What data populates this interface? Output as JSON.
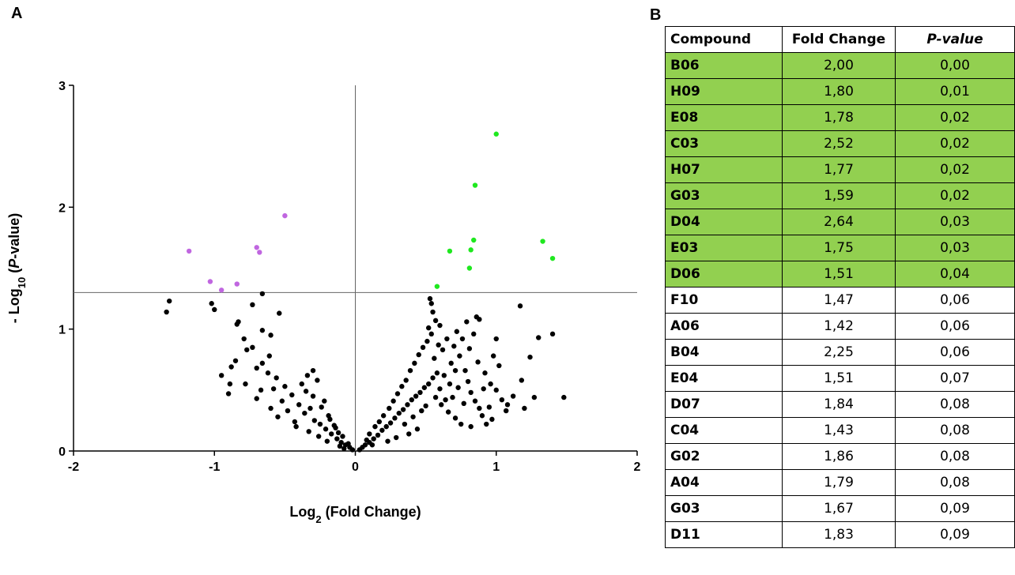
{
  "panel_labels": {
    "a": "A",
    "b": "B"
  },
  "colors": {
    "up": "#1fe81f",
    "down": "#c066e0",
    "ns": "#000000",
    "highlight": "#92d050"
  },
  "chart_data": {
    "type": "scatter",
    "title": "",
    "xlabel": "Log2 (Fold Change)",
    "ylabel": "- Log10 (P-value)",
    "xlim": [
      -2,
      2
    ],
    "ylim": [
      0,
      3
    ],
    "x_ticks": [
      "-2",
      "-1",
      "0",
      "1",
      "2"
    ],
    "y_ticks": [
      "0",
      "1",
      "2",
      "3"
    ],
    "reference_lines": {
      "x": 0,
      "y": 1.3
    },
    "grid": false,
    "series": [
      {
        "color": "#1fe81f",
        "points": [
          [
            1.0,
            2.6
          ],
          [
            0.85,
            2.18
          ],
          [
            0.84,
            1.73
          ],
          [
            0.82,
            1.65
          ],
          [
            1.33,
            1.72
          ],
          [
            1.4,
            1.58
          ],
          [
            0.67,
            1.64
          ],
          [
            0.81,
            1.5
          ],
          [
            0.58,
            1.35
          ]
        ]
      },
      {
        "color": "#c066e0",
        "points": [
          [
            -0.5,
            1.93
          ],
          [
            -1.18,
            1.64
          ],
          [
            -0.7,
            1.67
          ],
          [
            -0.68,
            1.63
          ],
          [
            -1.03,
            1.39
          ],
          [
            -0.84,
            1.37
          ],
          [
            -0.95,
            1.32
          ]
        ]
      },
      {
        "color": "#000000",
        "points": [
          [
            -1.34,
            1.14
          ],
          [
            -1.32,
            1.23
          ],
          [
            -1.02,
            1.21
          ],
          [
            -1.0,
            1.16
          ],
          [
            -0.83,
            1.06
          ],
          [
            -0.84,
            1.04
          ],
          [
            -0.66,
            1.29
          ],
          [
            -0.54,
            1.13
          ],
          [
            -0.6,
            0.95
          ],
          [
            -0.73,
            1.2
          ],
          [
            -0.66,
            0.99
          ],
          [
            -0.73,
            0.85
          ],
          [
            -0.95,
            0.62
          ],
          [
            -0.89,
            0.55
          ],
          [
            -0.9,
            0.47
          ],
          [
            -0.78,
            0.55
          ],
          [
            -0.61,
            0.78
          ],
          [
            -0.66,
            0.72
          ],
          [
            -0.7,
            0.68
          ],
          [
            -0.58,
            0.51
          ],
          [
            -0.5,
            0.53
          ],
          [
            -0.45,
            0.46
          ],
          [
            -0.4,
            0.38
          ],
          [
            -0.36,
            0.31
          ],
          [
            -0.32,
            0.35
          ],
          [
            -0.29,
            0.25
          ],
          [
            -0.25,
            0.22
          ],
          [
            -0.21,
            0.18
          ],
          [
            -0.17,
            0.14
          ],
          [
            -0.13,
            0.1
          ],
          [
            -0.1,
            0.07
          ],
          [
            -0.07,
            0.05
          ],
          [
            -0.04,
            0.03
          ],
          [
            -0.02,
            0.01
          ],
          [
            -0.38,
            0.55
          ],
          [
            -0.34,
            0.62
          ],
          [
            -0.3,
            0.66
          ],
          [
            -0.27,
            0.58
          ],
          [
            -0.22,
            0.41
          ],
          [
            -0.19,
            0.29
          ],
          [
            -0.15,
            0.21
          ],
          [
            -0.12,
            0.15
          ],
          [
            -0.43,
            0.24
          ],
          [
            -0.48,
            0.33
          ],
          [
            -0.52,
            0.41
          ],
          [
            -0.56,
            0.6
          ],
          [
            -0.62,
            0.64
          ],
          [
            -0.67,
            0.5
          ],
          [
            -0.77,
            0.83
          ],
          [
            -0.79,
            0.92
          ],
          [
            -0.85,
            0.74
          ],
          [
            -0.88,
            0.69
          ],
          [
            -0.7,
            0.43
          ],
          [
            -0.6,
            0.35
          ],
          [
            -0.55,
            0.28
          ],
          [
            -0.42,
            0.2
          ],
          [
            -0.33,
            0.16
          ],
          [
            -0.26,
            0.12
          ],
          [
            -0.2,
            0.08
          ],
          [
            -0.11,
            0.04
          ],
          [
            -0.08,
            0.02
          ],
          [
            -0.3,
            0.45
          ],
          [
            -0.35,
            0.49
          ],
          [
            -0.24,
            0.36
          ],
          [
            -0.18,
            0.26
          ],
          [
            -0.14,
            0.19
          ],
          [
            -0.09,
            0.12
          ],
          [
            -0.05,
            0.06
          ],
          [
            0.03,
            0.01
          ],
          [
            0.05,
            0.03
          ],
          [
            0.07,
            0.05
          ],
          [
            0.1,
            0.07
          ],
          [
            0.13,
            0.1
          ],
          [
            0.16,
            0.13
          ],
          [
            0.19,
            0.17
          ],
          [
            0.22,
            0.2
          ],
          [
            0.25,
            0.23
          ],
          [
            0.28,
            0.27
          ],
          [
            0.31,
            0.31
          ],
          [
            0.34,
            0.34
          ],
          [
            0.37,
            0.38
          ],
          [
            0.4,
            0.42
          ],
          [
            0.43,
            0.45
          ],
          [
            0.46,
            0.48
          ],
          [
            0.49,
            0.52
          ],
          [
            0.52,
            0.55
          ],
          [
            0.55,
            0.6
          ],
          [
            0.58,
            0.64
          ],
          [
            0.2,
            0.29
          ],
          [
            0.24,
            0.35
          ],
          [
            0.27,
            0.41
          ],
          [
            0.3,
            0.47
          ],
          [
            0.33,
            0.53
          ],
          [
            0.36,
            0.58
          ],
          [
            0.39,
            0.66
          ],
          [
            0.42,
            0.72
          ],
          [
            0.45,
            0.79
          ],
          [
            0.48,
            0.85
          ],
          [
            0.51,
            0.9
          ],
          [
            0.54,
            0.96
          ],
          [
            0.52,
            1.01
          ],
          [
            0.57,
            1.07
          ],
          [
            0.53,
            1.25
          ],
          [
            0.54,
            1.21
          ],
          [
            0.55,
            1.14
          ],
          [
            0.6,
            1.03
          ],
          [
            0.65,
            0.92
          ],
          [
            0.7,
            0.86
          ],
          [
            0.74,
            0.78
          ],
          [
            0.78,
            0.66
          ],
          [
            0.8,
            0.57
          ],
          [
            0.82,
            0.48
          ],
          [
            0.85,
            0.41
          ],
          [
            0.88,
            0.35
          ],
          [
            0.9,
            0.29
          ],
          [
            0.86,
            1.1
          ],
          [
            0.88,
            1.08
          ],
          [
            0.84,
            0.96
          ],
          [
            0.79,
            1.06
          ],
          [
            0.76,
            0.92
          ],
          [
            0.72,
            0.98
          ],
          [
            0.68,
            0.72
          ],
          [
            0.63,
            0.62
          ],
          [
            0.6,
            0.51
          ],
          [
            0.57,
            0.44
          ],
          [
            0.61,
            0.38
          ],
          [
            0.66,
            0.32
          ],
          [
            0.71,
            0.27
          ],
          [
            0.75,
            0.22
          ],
          [
            0.69,
            0.44
          ],
          [
            0.73,
            0.52
          ],
          [
            0.77,
            0.39
          ],
          [
            0.92,
            0.64
          ],
          [
            0.96,
            0.55
          ],
          [
            1.0,
            0.5
          ],
          [
            1.04,
            0.42
          ],
          [
            1.08,
            0.38
          ],
          [
            1.12,
            0.45
          ],
          [
            0.98,
            0.78
          ],
          [
            1.02,
            0.7
          ],
          [
            1.0,
            0.92
          ],
          [
            1.17,
            1.19
          ],
          [
            1.24,
            0.77
          ],
          [
            1.3,
            0.93
          ],
          [
            1.4,
            0.96
          ],
          [
            1.48,
            0.44
          ],
          [
            1.27,
            0.44
          ],
          [
            1.18,
            0.58
          ],
          [
            1.2,
            0.35
          ],
          [
            1.07,
            0.33
          ],
          [
            0.93,
            0.22
          ],
          [
            0.82,
            0.2
          ],
          [
            0.1,
            0.14
          ],
          [
            0.14,
            0.2
          ],
          [
            0.17,
            0.24
          ],
          [
            0.12,
            0.05
          ],
          [
            0.08,
            0.09
          ],
          [
            0.35,
            0.22
          ],
          [
            0.41,
            0.28
          ],
          [
            0.47,
            0.33
          ],
          [
            0.5,
            0.37
          ],
          [
            0.44,
            0.18
          ],
          [
            0.38,
            0.14
          ],
          [
            0.29,
            0.11
          ],
          [
            0.23,
            0.08
          ],
          [
            0.62,
            0.83
          ],
          [
            0.67,
            0.55
          ],
          [
            0.71,
            0.66
          ],
          [
            0.64,
            0.42
          ],
          [
            0.56,
            0.76
          ],
          [
            0.59,
            0.87
          ],
          [
            0.81,
            0.84
          ],
          [
            0.87,
            0.73
          ],
          [
            0.91,
            0.51
          ],
          [
            0.95,
            0.36
          ],
          [
            0.97,
            0.26
          ]
        ]
      }
    ]
  },
  "table": {
    "headers": [
      "Compound",
      "Fold Change",
      "P-value"
    ],
    "rows": [
      [
        "B06",
        "2,00",
        "0,00"
      ],
      [
        "H09",
        "1,80",
        "0,01"
      ],
      [
        "E08",
        "1,78",
        "0,02"
      ],
      [
        "C03",
        "2,52",
        "0,02"
      ],
      [
        "H07",
        "1,77",
        "0,02"
      ],
      [
        "G03",
        "1,59",
        "0,02"
      ],
      [
        "D04",
        "2,64",
        "0,03"
      ],
      [
        "E03",
        "1,75",
        "0,03"
      ],
      [
        "D06",
        "1,51",
        "0,04"
      ],
      [
        "F10",
        "1,47",
        "0,06"
      ],
      [
        "A06",
        "1,42",
        "0,06"
      ],
      [
        "B04",
        "2,25",
        "0,06"
      ],
      [
        "E04",
        "1,51",
        "0,07"
      ],
      [
        "D07",
        "1,84",
        "0,08"
      ],
      [
        "C04",
        "1,43",
        "0,08"
      ],
      [
        "G02",
        "1,86",
        "0,08"
      ],
      [
        "A04",
        "1,79",
        "0,08"
      ],
      [
        "G03",
        "1,67",
        "0,09"
      ],
      [
        "D11",
        "1,83",
        "0,09"
      ]
    ],
    "highlighted_count": 9
  }
}
